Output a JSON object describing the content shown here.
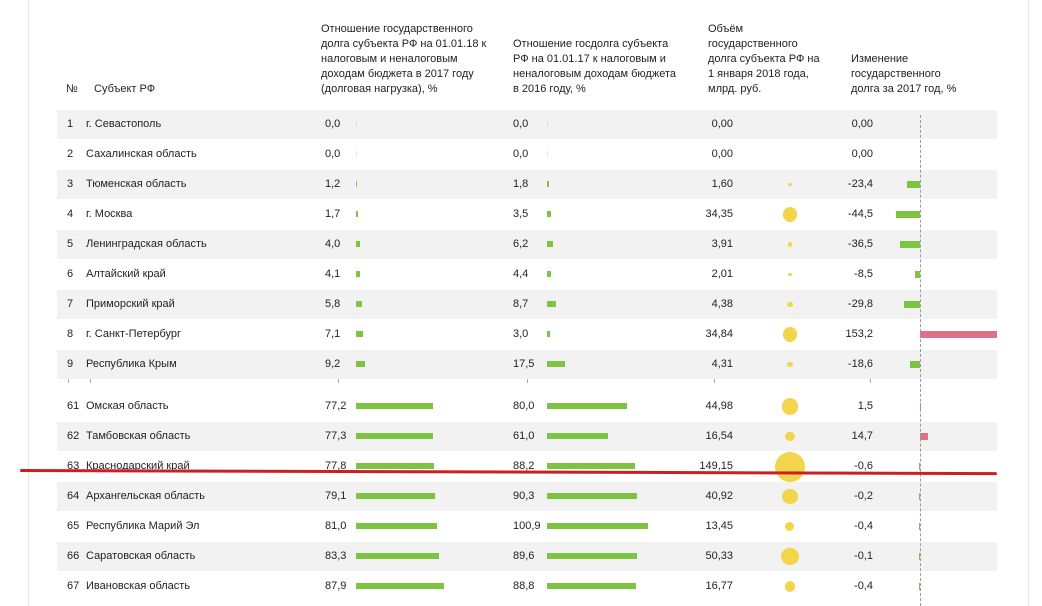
{
  "headers": {
    "num": "№",
    "subject": "Субъект РФ",
    "debt_load_2017": "Отношение государственного долга субъекта РФ на 01.01.18 к налоговым и неналоговым доходам бюджета в 2017 году (долговая нагрузка), %",
    "debt_load_2016": "Отношение госдолга субъекта РФ на 01.01.17 к налоговым и неналоговым доходам бюджета в 2016 году, %",
    "debt_volume": "Объём государственного долга субъекта РФ на 1 января 2018 года, млрд. руб.",
    "debt_change": "Изменение государственного долга за 2017 год, %"
  },
  "colors": {
    "bar": "#7cc442",
    "bubble": "#f3d54c",
    "change_negative": "#7cc442",
    "change_positive": "#e07088",
    "highlight_line": "#cc1f1f",
    "row_shade": "#f2f2f2"
  },
  "chart_data": {
    "type": "table",
    "highlighted_row": "Краснодарский край",
    "rows": [
      {
        "n": "1",
        "name": "г. Севастополь",
        "load2017": 0.0,
        "load2017_text": "0,0",
        "load2016": 0.0,
        "load2016_text": "0,0",
        "volume": 0.0,
        "volume_text": "0,00",
        "change": 0.0,
        "change_text": "0,00"
      },
      {
        "n": "2",
        "name": "Сахалинская область",
        "load2017": 0.0,
        "load2017_text": "0,0",
        "load2016": 0.0,
        "load2016_text": "0,0",
        "volume": 0.0,
        "volume_text": "0,00",
        "change": 0.0,
        "change_text": "0,00"
      },
      {
        "n": "3",
        "name": "Тюменская область",
        "load2017": 1.2,
        "load2017_text": "1,2",
        "load2016": 1.8,
        "load2016_text": "1,8",
        "volume": 1.6,
        "volume_text": "1,60",
        "change": -23.4,
        "change_text": "-23,4"
      },
      {
        "n": "4",
        "name": "г. Москва",
        "load2017": 1.7,
        "load2017_text": "1,7",
        "load2016": 3.5,
        "load2016_text": "3,5",
        "volume": 34.35,
        "volume_text": "34,35",
        "change": -44.5,
        "change_text": "-44,5"
      },
      {
        "n": "5",
        "name": "Ленинградская область",
        "load2017": 4.0,
        "load2017_text": "4,0",
        "load2016": 6.2,
        "load2016_text": "6,2",
        "volume": 3.91,
        "volume_text": "3,91",
        "change": -36.5,
        "change_text": "-36,5"
      },
      {
        "n": "6",
        "name": "Алтайский край",
        "load2017": 4.1,
        "load2017_text": "4,1",
        "load2016": 4.4,
        "load2016_text": "4,4",
        "volume": 2.01,
        "volume_text": "2,01",
        "change": -8.5,
        "change_text": "-8,5"
      },
      {
        "n": "7",
        "name": "Приморский край",
        "load2017": 5.8,
        "load2017_text": "5,8",
        "load2016": 8.7,
        "load2016_text": "8,7",
        "volume": 4.38,
        "volume_text": "4,38",
        "change": -29.8,
        "change_text": "-29,8"
      },
      {
        "n": "8",
        "name": "г. Санкт-Петербург",
        "load2017": 7.1,
        "load2017_text": "7,1",
        "load2016": 3.0,
        "load2016_text": "3,0",
        "volume": 34.84,
        "volume_text": "34,84",
        "change": 153.2,
        "change_text": "153,2"
      },
      {
        "n": "9",
        "name": "Республика Крым",
        "load2017": 9.2,
        "load2017_text": "9,2",
        "load2016": 17.5,
        "load2016_text": "17,5",
        "volume": 4.31,
        "volume_text": "4,31",
        "change": -18.6,
        "change_text": "-18,6"
      },
      {
        "n": "61",
        "name": "Омская область",
        "load2017": 77.2,
        "load2017_text": "77,2",
        "load2016": 80.0,
        "load2016_text": "80,0",
        "volume": 44.98,
        "volume_text": "44,98",
        "change": 1.5,
        "change_text": "1,5"
      },
      {
        "n": "62",
        "name": "Тамбовская область",
        "load2017": 77.3,
        "load2017_text": "77,3",
        "load2016": 61.0,
        "load2016_text": "61,0",
        "volume": 16.54,
        "volume_text": "16,54",
        "change": 14.7,
        "change_text": "14,7"
      },
      {
        "n": "63",
        "name": "Краснодарский край",
        "load2017": 77.8,
        "load2017_text": "77,8",
        "load2016": 88.2,
        "load2016_text": "88,2",
        "volume": 149.15,
        "volume_text": "149,15",
        "change": -0.6,
        "change_text": "-0,6"
      },
      {
        "n": "64",
        "name": "Архангельская область",
        "load2017": 79.1,
        "load2017_text": "79,1",
        "load2016": 90.3,
        "load2016_text": "90,3",
        "volume": 40.92,
        "volume_text": "40,92",
        "change": -0.2,
        "change_text": "-0,2"
      },
      {
        "n": "65",
        "name": "Республика Марий Эл",
        "load2017": 81.0,
        "load2017_text": "81,0",
        "load2016": 100.9,
        "load2016_text": "100,9",
        "volume": 13.45,
        "volume_text": "13,45",
        "change": -0.4,
        "change_text": "-0,4"
      },
      {
        "n": "66",
        "name": "Саратовская область",
        "load2017": 83.3,
        "load2017_text": "83,3",
        "load2016": 89.6,
        "load2016_text": "89,6",
        "volume": 50.33,
        "volume_text": "50,33",
        "change": -0.1,
        "change_text": "-0,1"
      },
      {
        "n": "67",
        "name": "Ивановская область",
        "load2017": 87.9,
        "load2017_text": "87,9",
        "load2016": 88.8,
        "load2016_text": "88,8",
        "volume": 16.77,
        "volume_text": "16,77",
        "change": -0.4,
        "change_text": "-0,4"
      }
    ]
  }
}
